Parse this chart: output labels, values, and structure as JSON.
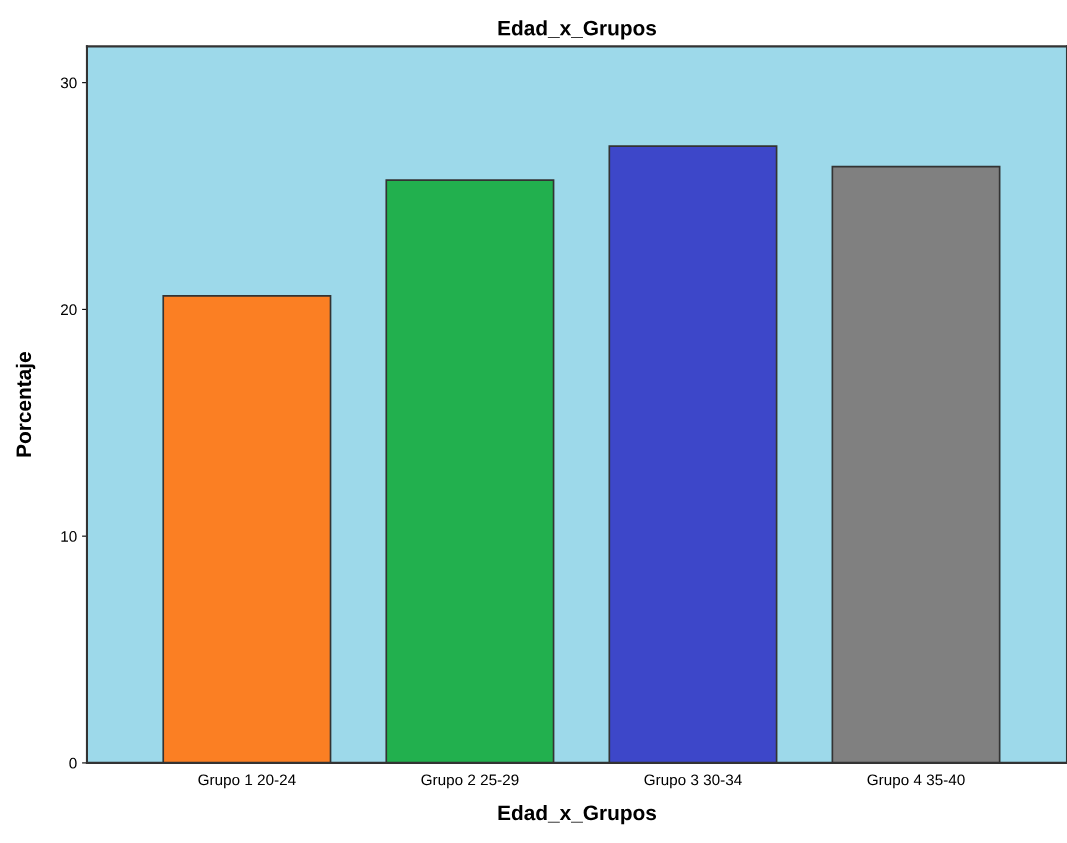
{
  "chart_data": {
    "type": "bar",
    "title": "Edad_x_Grupos",
    "xlabel": "Edad_x_Grupos",
    "ylabel": "Porcentaje",
    "categories": [
      "Grupo 1 20-24",
      "Grupo 2 25-29",
      "Grupo 3 30-34",
      "Grupo 4 35-40"
    ],
    "values": [
      20.6,
      25.7,
      27.2,
      26.3
    ],
    "colors": [
      "#fb7f23",
      "#22b04e",
      "#3d47c9",
      "#808080"
    ],
    "ylim": [
      0,
      31.6
    ],
    "yticks": [
      0,
      10,
      20,
      30
    ],
    "grid": false,
    "legend": false
  }
}
